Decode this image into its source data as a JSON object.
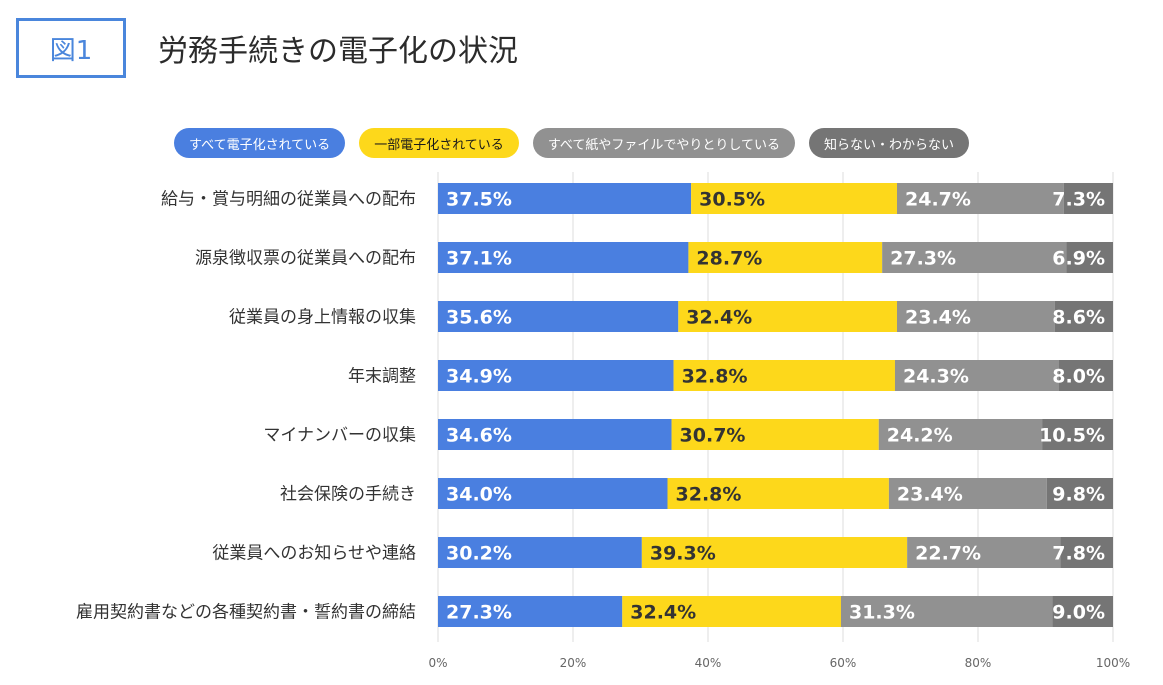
{
  "header": {
    "figure_label": "図1",
    "title": "労務手続きの電子化の状況"
  },
  "colors": {
    "blue": "#4a7fe0",
    "yellow": "#fdd81b",
    "gray": "#919191",
    "darkgray": "#757575",
    "grid": "#dddddd"
  },
  "chart_data": {
    "type": "bar",
    "orientation": "horizontal-stacked-100",
    "title": "労務手続きの電子化の状況",
    "categories": [
      "給与・賞与明細の従業員への配布",
      "源泉徴収票の従業員への配布",
      "従業員の身上情報の収集",
      "年末調整",
      "マイナンバーの収集",
      "社会保険の手続き",
      "従業員へのお知らせや連絡",
      "雇用契約書などの各種契約書・誓約書の締結"
    ],
    "series": [
      {
        "name": "すべて電子化されている",
        "color": "#4a7fe0",
        "text_color": "#ffffff",
        "values": [
          37.5,
          37.1,
          35.6,
          34.9,
          34.6,
          34.0,
          30.2,
          27.3
        ]
      },
      {
        "name": "一部電子化されている",
        "color": "#fdd81b",
        "text_color": "#333333",
        "values": [
          30.5,
          28.7,
          32.4,
          32.8,
          30.7,
          32.8,
          39.3,
          32.4
        ]
      },
      {
        "name": "すべて紙やファイルでやりとりしている",
        "color": "#919191",
        "text_color": "#ffffff",
        "values": [
          24.7,
          27.3,
          23.4,
          24.3,
          24.2,
          23.4,
          22.7,
          31.3
        ]
      },
      {
        "name": "知らない・わからない",
        "color": "#757575",
        "text_color": "#ffffff",
        "values": [
          7.3,
          6.9,
          8.6,
          8.0,
          10.5,
          9.8,
          7.8,
          9.0
        ]
      }
    ],
    "xlim": [
      0,
      100
    ],
    "x_ticks": [
      "0%",
      "20%",
      "40%",
      "60%",
      "80%",
      "100%"
    ],
    "legend_position": "top"
  }
}
